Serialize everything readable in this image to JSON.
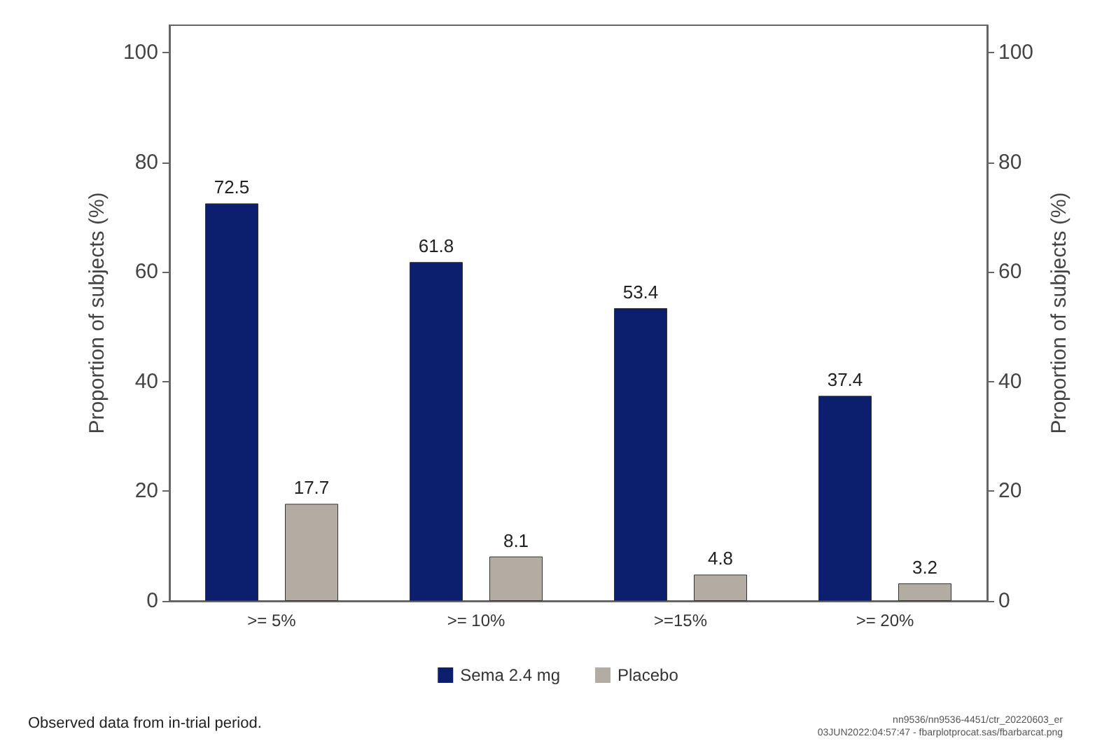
{
  "chart_data": {
    "type": "bar",
    "ylabel": "Proportion of subjects (%)",
    "y2label": "Proportion of subjects (%)",
    "categories": [
      ">= 5%",
      ">= 10%",
      ">=15%",
      ">= 20%"
    ],
    "series": [
      {
        "name": "Sema 2.4 mg",
        "color": "#0c1f6e",
        "values": [
          72.5,
          61.8,
          53.4,
          37.4
        ]
      },
      {
        "name": "Placebo",
        "color": "#b3aca3",
        "values": [
          17.7,
          8.1,
          4.8,
          3.2
        ]
      }
    ],
    "ylim": [
      0,
      105
    ],
    "yticks": [
      0,
      20,
      40,
      60,
      80,
      100
    ],
    "y2lim": [
      0,
      105
    ],
    "y2ticks": [
      0,
      20,
      40,
      60,
      80,
      100
    ],
    "data_labels": true,
    "grid": false,
    "legend": "bottom",
    "annotations": [
      "Observed data from in-trial period.",
      "nn9536/nn9536-4451/ctr_20220603_er",
      "03JUN2022:04:57:47 - fbarplotprocat.sas/fbarbarcat.png"
    ]
  }
}
